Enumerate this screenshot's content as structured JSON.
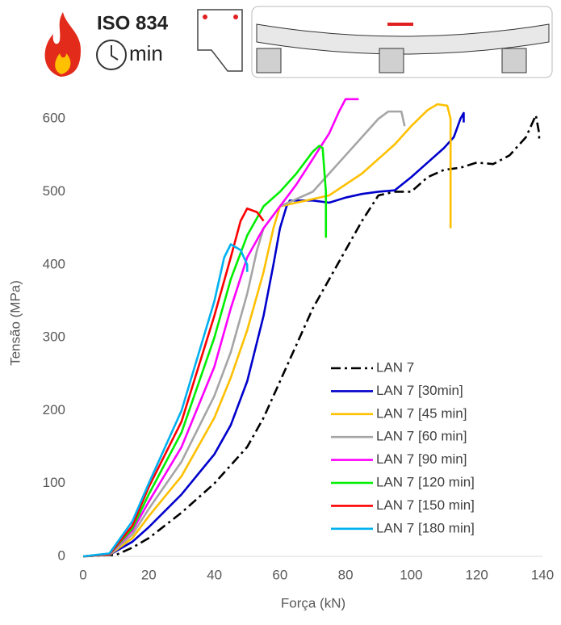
{
  "header": {
    "standard": "ISO 834",
    "unit": "min"
  },
  "chart_data": {
    "type": "line",
    "x_label": "Força (kN)",
    "y_label": "Tensão (MPa)",
    "xlim": [
      0,
      140
    ],
    "ylim": [
      0,
      650
    ],
    "xticks": [
      0,
      20,
      40,
      60,
      80,
      100,
      120,
      140
    ],
    "yticks": [
      0,
      100,
      200,
      300,
      400,
      500,
      600
    ],
    "grid": false,
    "legend": "lower right",
    "series": [
      {
        "name": "LAN 7",
        "color": "#000000",
        "line_style": "dash-dot",
        "x": [
          0,
          10,
          15,
          20,
          30,
          40,
          50,
          55,
          60,
          65,
          70,
          75,
          80,
          85,
          90,
          95,
          100,
          105,
          110,
          115,
          120,
          125,
          130,
          135,
          137,
          138,
          139,
          139
        ],
        "values": [
          0,
          2,
          12,
          25,
          60,
          100,
          150,
          190,
          240,
          290,
          340,
          380,
          420,
          460,
          495,
          500,
          500,
          520,
          530,
          533,
          540,
          538,
          550,
          575,
          595,
          605,
          580,
          570
        ]
      },
      {
        "name": "LAN 7 [30min]",
        "color": "#0000cc",
        "line_style": "solid",
        "x": [
          0,
          8,
          15,
          20,
          30,
          40,
          45,
          50,
          55,
          58,
          60,
          62,
          63,
          70,
          75,
          80,
          85,
          90,
          95,
          100,
          105,
          110,
          113,
          115,
          116,
          116
        ],
        "values": [
          0,
          2,
          20,
          40,
          85,
          140,
          180,
          240,
          330,
          400,
          450,
          480,
          488,
          488,
          485,
          492,
          497,
          500,
          502,
          520,
          540,
          560,
          575,
          600,
          608,
          595
        ]
      },
      {
        "name": "LAN 7 [45 min]",
        "color": "#ffc000",
        "line_style": "solid",
        "x": [
          0,
          8,
          15,
          20,
          30,
          40,
          45,
          50,
          55,
          58,
          60,
          65,
          70,
          75,
          80,
          85,
          90,
          95,
          100,
          105,
          108,
          111,
          112,
          112
        ],
        "values": [
          0,
          2,
          25,
          55,
          110,
          190,
          245,
          310,
          390,
          450,
          480,
          485,
          490,
          495,
          510,
          525,
          545,
          565,
          590,
          612,
          620,
          618,
          600,
          450
        ]
      },
      {
        "name": "LAN 7 [60 min]",
        "color": "#a5a5a5",
        "line_style": "solid",
        "x": [
          0,
          8,
          15,
          20,
          30,
          40,
          45,
          50,
          53,
          55,
          60,
          65,
          70,
          75,
          80,
          85,
          90,
          93,
          97,
          98
        ],
        "values": [
          0,
          2,
          30,
          65,
          130,
          220,
          280,
          360,
          420,
          450,
          480,
          490,
          500,
          525,
          550,
          575,
          600,
          610,
          610,
          590
        ]
      },
      {
        "name": "LAN 7 [90 min]",
        "color": "#ff00ff",
        "line_style": "solid",
        "x": [
          0,
          8,
          15,
          20,
          30,
          40,
          45,
          50,
          55,
          60,
          65,
          70,
          75,
          78,
          80,
          84
        ],
        "values": [
          0,
          3,
          35,
          75,
          150,
          260,
          340,
          410,
          450,
          480,
          510,
          545,
          580,
          610,
          627,
          627
        ]
      },
      {
        "name": "LAN 7 [120 min]",
        "color": "#00ee00",
        "line_style": "solid",
        "x": [
          0,
          8,
          15,
          20,
          30,
          40,
          45,
          50,
          55,
          60,
          65,
          70,
          72,
          73,
          74,
          74
        ],
        "values": [
          0,
          3,
          38,
          85,
          170,
          300,
          380,
          440,
          480,
          500,
          525,
          555,
          563,
          560,
          500,
          437
        ]
      },
      {
        "name": "LAN 7 [150 min]",
        "color": "#ff0000",
        "line_style": "solid",
        "x": [
          0,
          8,
          15,
          20,
          30,
          40,
          45,
          48,
          50,
          53,
          55
        ],
        "values": [
          0,
          3,
          42,
          95,
          185,
          330,
          410,
          460,
          477,
          472,
          460
        ]
      },
      {
        "name": "LAN 7 [180 min]",
        "color": "#00b0f0",
        "line_style": "solid",
        "x": [
          0,
          8,
          15,
          20,
          30,
          40,
          43,
          45,
          48,
          50,
          50
        ],
        "values": [
          0,
          4,
          48,
          100,
          200,
          350,
          410,
          428,
          420,
          400,
          390
        ]
      }
    ]
  }
}
